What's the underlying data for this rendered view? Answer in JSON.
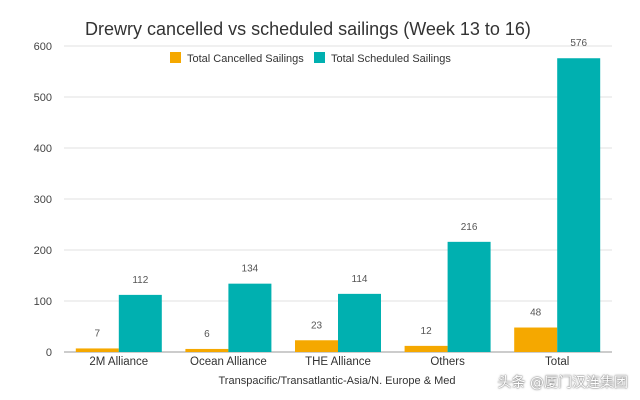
{
  "chart_data": {
    "type": "bar",
    "title": "Drewry cancelled vs scheduled sailings (Week 13 to 16)",
    "xlabel": "Transpacific/Transatlantic-Asia/N. Europe & Med",
    "ylabel": "",
    "ylim": [
      0,
      600
    ],
    "yticks": [
      0,
      100,
      200,
      300,
      400,
      500,
      600
    ],
    "grid": true,
    "legend": "top",
    "categories": [
      "2M Alliance",
      "Ocean Alliance",
      "THE Alliance",
      "Others",
      "Total"
    ],
    "series": [
      {
        "name": "Total Cancelled Sailings",
        "values": [
          7,
          6,
          23,
          12,
          48
        ],
        "color": "#f5a800"
      },
      {
        "name": "Total Scheduled Sailings",
        "values": [
          112,
          134,
          114,
          216,
          576
        ],
        "color": "#00b0b0"
      }
    ]
  },
  "watermark": "头条 @厦门汉连集团"
}
